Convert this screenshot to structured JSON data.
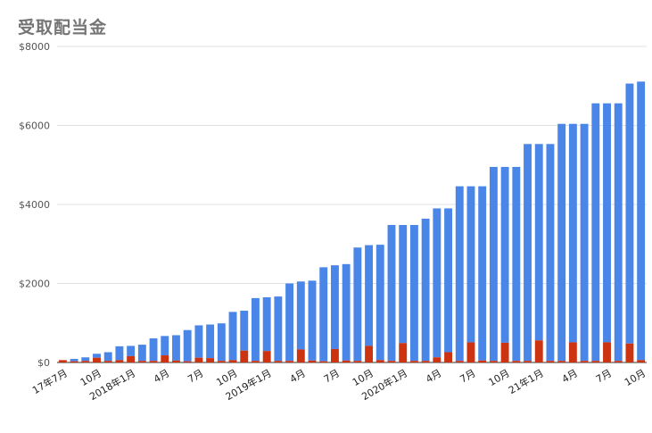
{
  "chart_data": {
    "type": "bar",
    "stacked": true,
    "title": "受取配当金",
    "xlabel": "",
    "ylabel": "",
    "ylim": [
      0,
      8000
    ],
    "yticks": [
      0,
      2000,
      4000,
      6000,
      8000
    ],
    "ytick_labels": [
      "$0",
      "$2000",
      "$4000",
      "$6000",
      "$8000"
    ],
    "grid": true,
    "legend": "none",
    "colors": {
      "cumulative": "#4a86e8",
      "monthly": "#cc3311"
    },
    "xtick_labels": [
      {
        "index": 0,
        "label": "17年7月"
      },
      {
        "index": 3,
        "label": "10月"
      },
      {
        "index": 6,
        "label": "2018年1月"
      },
      {
        "index": 9,
        "label": "4月"
      },
      {
        "index": 12,
        "label": "7月"
      },
      {
        "index": 15,
        "label": "10月"
      },
      {
        "index": 18,
        "label": "2019年1月"
      },
      {
        "index": 21,
        "label": "4月"
      },
      {
        "index": 24,
        "label": "7月"
      },
      {
        "index": 27,
        "label": "10月"
      },
      {
        "index": 30,
        "label": "2020年1月"
      },
      {
        "index": 33,
        "label": "4月"
      },
      {
        "index": 36,
        "label": "7月"
      },
      {
        "index": 39,
        "label": "10月"
      },
      {
        "index": 42,
        "label": "21年1月"
      },
      {
        "index": 45,
        "label": "4月"
      },
      {
        "index": 48,
        "label": "7月"
      },
      {
        "index": 51,
        "label": "10月"
      }
    ],
    "categories": [
      "2017-07",
      "2017-08",
      "2017-09",
      "2017-10",
      "2017-11",
      "2017-12",
      "2018-01",
      "2018-02",
      "2018-03",
      "2018-04",
      "2018-05",
      "2018-06",
      "2018-07",
      "2018-08",
      "2018-09",
      "2018-10",
      "2018-11",
      "2018-12",
      "2019-01",
      "2019-02",
      "2019-03",
      "2019-04",
      "2019-05",
      "2019-06",
      "2019-07",
      "2019-08",
      "2019-09",
      "2019-10",
      "2019-11",
      "2019-12",
      "2020-01",
      "2020-02",
      "2020-03",
      "2020-04",
      "2020-05",
      "2020-06",
      "2020-07",
      "2020-08",
      "2020-09",
      "2020-10",
      "2020-11",
      "2020-12",
      "2021-01",
      "2021-02",
      "2021-03",
      "2021-04",
      "2021-05",
      "2021-06",
      "2021-07",
      "2021-08",
      "2021-09",
      "2021-10"
    ],
    "series": [
      {
        "key": "monthly",
        "values": [
          60,
          30,
          40,
          120,
          40,
          60,
          160,
          40,
          40,
          180,
          50,
          30,
          120,
          110,
          40,
          60,
          300,
          40,
          290,
          40,
          40,
          330,
          50,
          30,
          340,
          50,
          40,
          420,
          60,
          40,
          490,
          40,
          40,
          130,
          260,
          40,
          510,
          50,
          40,
          500,
          40,
          40,
          560,
          40,
          40,
          510,
          40,
          40,
          510,
          40,
          480,
          60
        ]
      },
      {
        "key": "cumulative",
        "values": [
          60,
          90,
          130,
          220,
          260,
          410,
          420,
          450,
          610,
          670,
          690,
          820,
          940,
          960,
          990,
          1280,
          1310,
          1630,
          1650,
          1670,
          2000,
          2050,
          2070,
          2410,
          2460,
          2490,
          2910,
          2970,
          2980,
          3480,
          3480,
          3480,
          3640,
          3900,
          3900,
          4460,
          4460,
          4460,
          4950,
          4950,
          4950,
          5530,
          5530,
          5530,
          6040,
          6040,
          6040,
          6560,
          6560,
          6560,
          7060,
          7110
        ]
      }
    ]
  }
}
